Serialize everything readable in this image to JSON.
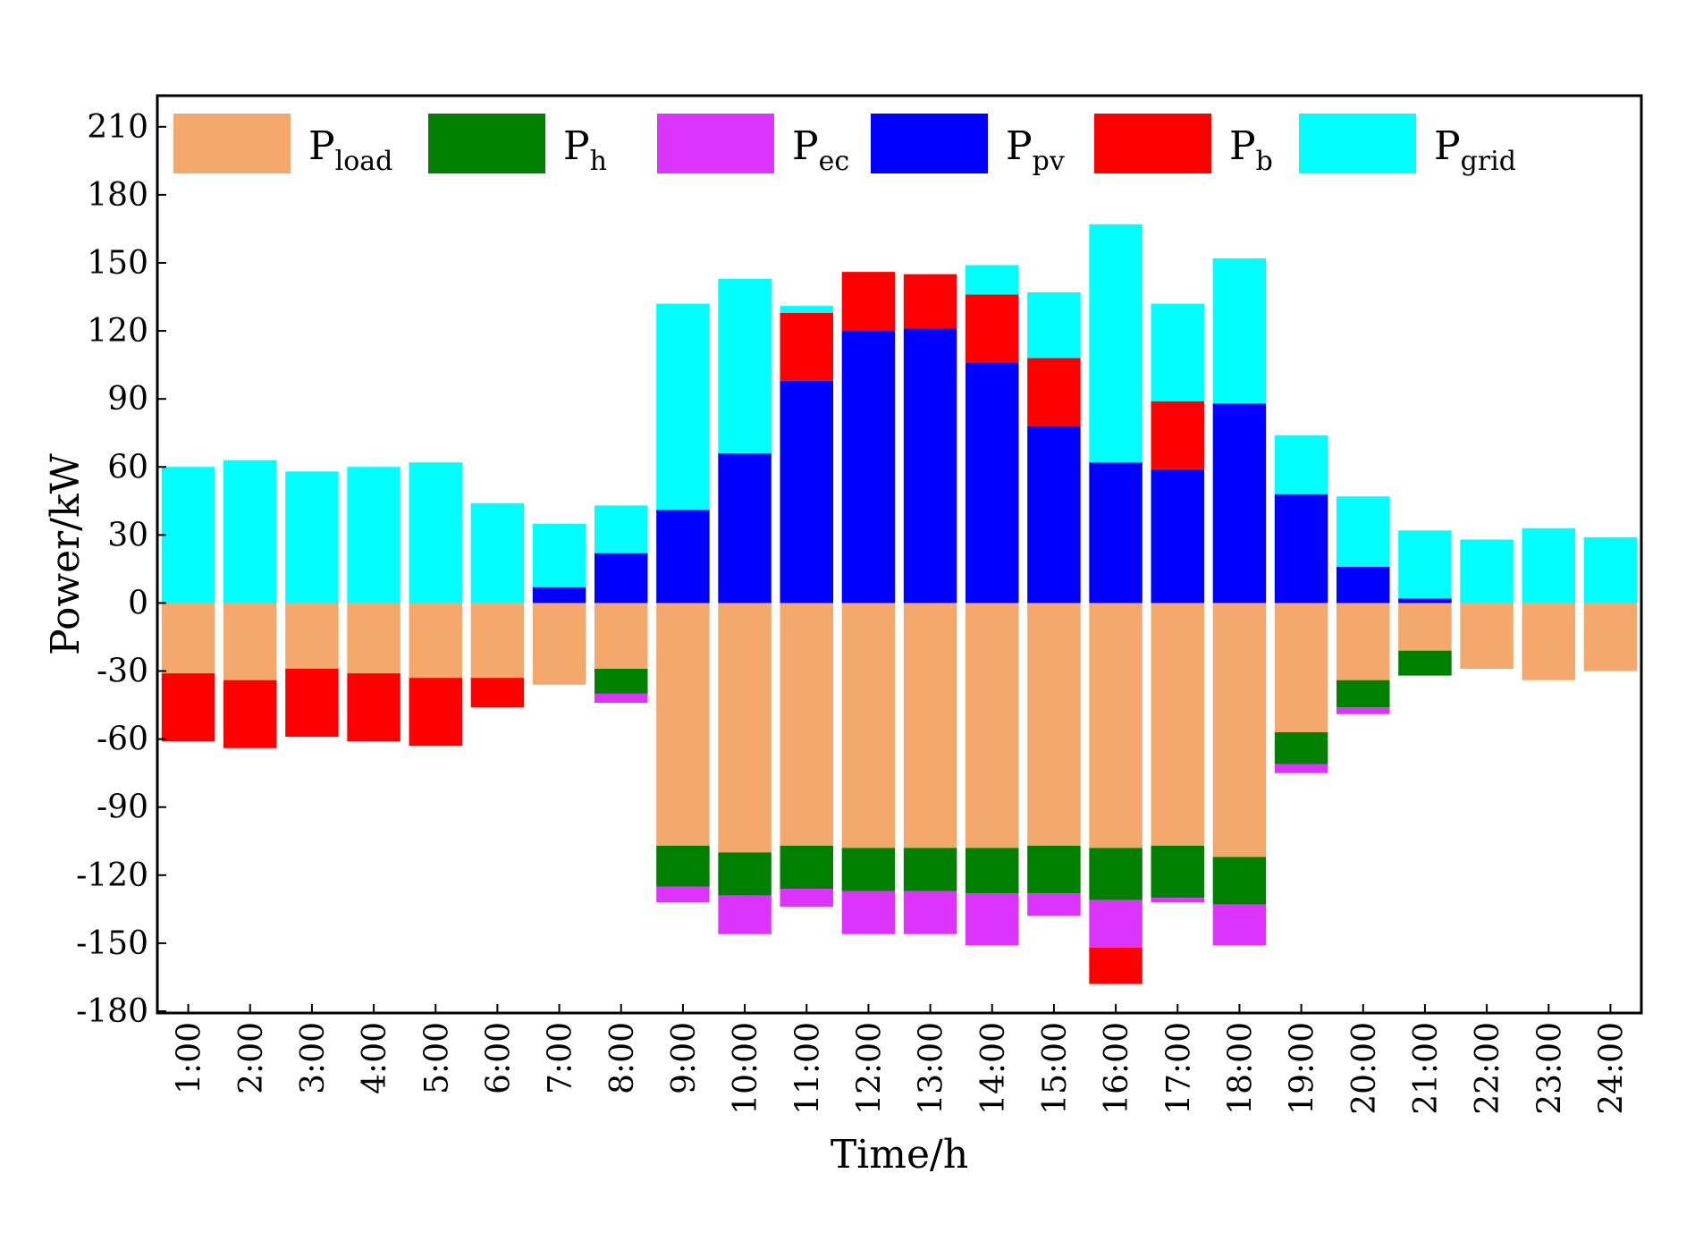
{
  "chart_data": {
    "type": "bar",
    "stacked": true,
    "xlabel": "Time/h",
    "ylabel": "Power/kW",
    "ylim": [
      -180,
      210
    ],
    "yticks": [
      210,
      180,
      150,
      120,
      90,
      60,
      30,
      0,
      -30,
      -60,
      -90,
      -120,
      -150,
      -180
    ],
    "categories": [
      "1:00",
      "2:00",
      "3:00",
      "4:00",
      "5:00",
      "6:00",
      "7:00",
      "8:00",
      "9:00",
      "10:00",
      "11:00",
      "12:00",
      "13:00",
      "14:00",
      "15:00",
      "16:00",
      "17:00",
      "18:00",
      "19:00",
      "20:00",
      "21:00",
      "22:00",
      "23:00",
      "24:00"
    ],
    "legend_position": "top",
    "series": [
      {
        "name": "P",
        "sub": "load",
        "color": "#F4A86B",
        "values": [
          -31,
          -34,
          -29,
          -31,
          -33,
          -33,
          -36,
          -29,
          -107,
          -110,
          -107,
          -108,
          -108,
          -108,
          -107,
          -108,
          -107,
          -112,
          -57,
          -34,
          -21,
          -29,
          -34,
          -30
        ]
      },
      {
        "name": "P",
        "sub": "h",
        "color": "#008000",
        "values": [
          0,
          0,
          0,
          0,
          0,
          0,
          0,
          -11,
          -18,
          -19,
          -19,
          -19,
          -19,
          -20,
          -21,
          -23,
          -23,
          -21,
          -14,
          -12,
          -11,
          0,
          0,
          0
        ]
      },
      {
        "name": "P",
        "sub": "ec",
        "color": "#DD33FF",
        "values": [
          0,
          0,
          0,
          0,
          0,
          0,
          0,
          -4,
          -7,
          -17,
          -8,
          -19,
          -19,
          -23,
          -10,
          -21,
          -2,
          -18,
          -4,
          -3,
          0,
          0,
          0,
          0
        ]
      },
      {
        "name": "P",
        "sub": "pv",
        "color": "#0000FF",
        "values": [
          0,
          0,
          0,
          0,
          0,
          0,
          7,
          22,
          41,
          66,
          98,
          120,
          121,
          106,
          78,
          62,
          59,
          88,
          48,
          16,
          2,
          0,
          0,
          0
        ]
      },
      {
        "name": "P",
        "sub": "b",
        "color": "#FF0000",
        "values": [
          -30,
          -30,
          -30,
          -30,
          -30,
          -13,
          0,
          0,
          0,
          0,
          30,
          26,
          24,
          30,
          30,
          -16,
          30,
          0,
          0,
          0,
          0,
          0,
          0,
          0
        ]
      },
      {
        "name": "P",
        "sub": "grid",
        "color": "#00FFFF",
        "values": [
          60,
          63,
          58,
          60,
          62,
          44,
          28,
          21,
          91,
          77,
          3,
          0,
          0,
          13,
          29,
          105,
          43,
          64,
          26,
          31,
          30,
          28,
          33,
          29
        ]
      }
    ]
  }
}
